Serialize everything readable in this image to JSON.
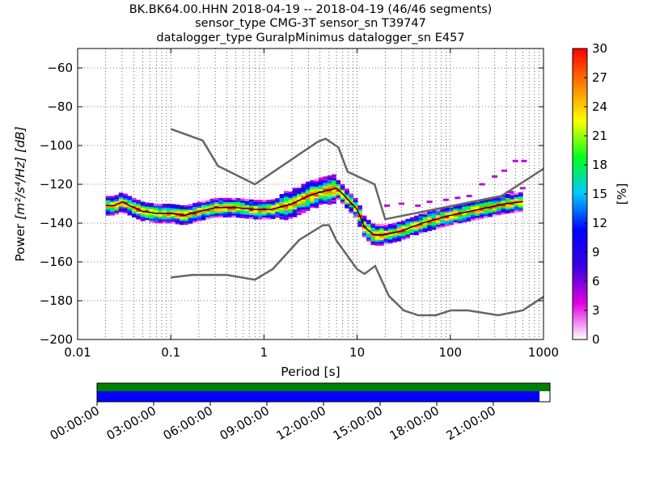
{
  "chart_data": {
    "type": "heatmap",
    "title_lines": [
      "BK.BK64.00.HHN   2018-04-19 -- 2018-04-19  (46/46 segments)",
      "sensor_type CMG-3T sensor_sn T39747",
      "datalogger_type GuralpMinimus datalogger_sn E457"
    ],
    "xlabel": "Period [s]",
    "ylabel": "Power",
    "ylabel_units": "[m²/s⁴/Hz] [dB]",
    "x_scale": "log",
    "xlim": [
      0.01,
      1000
    ],
    "ylim": [
      -200,
      -50
    ],
    "x_ticks": [
      0.01,
      0.1,
      1,
      10,
      100,
      1000
    ],
    "x_tick_labels": [
      "0.01",
      "0.1",
      "1",
      "10",
      "100",
      "1000"
    ],
    "y_ticks": [
      -200,
      -180,
      -160,
      -140,
      -120,
      -100,
      -80,
      -60
    ],
    "y_tick_labels": [
      "−200",
      "−180",
      "−160",
      "−140",
      "−120",
      "−100",
      "−80",
      "−60"
    ],
    "grid": "dotted",
    "colorbar": {
      "label": "[%]",
      "min": 0,
      "max": 30,
      "ticks": [
        0,
        3,
        6,
        9,
        12,
        15,
        18,
        21,
        24,
        27,
        30
      ],
      "tick_labels": [
        "0",
        "3",
        "6",
        "9",
        "12",
        "15",
        "18",
        "21",
        "24",
        "27",
        "30"
      ],
      "stops": [
        "#ffffff",
        "#e000e0",
        "#3a00e0",
        "#0000ff",
        "#00c8ff",
        "#00ff20",
        "#ffff00",
        "#ff8000",
        "#ff0000"
      ]
    },
    "high_noise_model": {
      "period": [
        0.1,
        0.22,
        0.32,
        0.8,
        3.8,
        4.6,
        6.3,
        7.9,
        15.4,
        20,
        354,
        1000
      ],
      "db": [
        -91.5,
        -97.4,
        -110.5,
        -120,
        -98,
        -96.5,
        -101,
        -113.5,
        -120,
        -138,
        -126,
        -112
      ]
    },
    "low_noise_model": {
      "period": [
        0.1,
        0.17,
        0.4,
        0.8,
        1.24,
        2.4,
        4.3,
        5,
        6,
        10,
        12,
        15.6,
        21.9,
        31.6,
        45,
        70,
        101,
        154,
        328,
        600,
        1000
      ],
      "db": [
        -168,
        -166.7,
        -166.7,
        -169.2,
        -163.7,
        -148.6,
        -141.1,
        -141.1,
        -149,
        -163.8,
        -166.2,
        -162.1,
        -177.5,
        -185,
        -187.5,
        -187.5,
        -185,
        -185,
        -187.5,
        -185,
        -178
      ]
    },
    "mode_curve": {
      "period": [
        0.02,
        0.025,
        0.03,
        0.04,
        0.05,
        0.07,
        0.1,
        0.14,
        0.2,
        0.3,
        0.5,
        0.8,
        1.2,
        2,
        3,
        4,
        5,
        6,
        7,
        8,
        10,
        12,
        15,
        20,
        30,
        50,
        100,
        200,
        400,
        600
      ],
      "db": [
        -131,
        -131,
        -129,
        -132,
        -134,
        -135,
        -135,
        -136,
        -134,
        -132,
        -132,
        -133,
        -133,
        -130,
        -126,
        -124,
        -123,
        -122,
        -125,
        -128,
        -133,
        -142,
        -146,
        -146,
        -144,
        -140,
        -136,
        -133,
        -130,
        -129
      ]
    },
    "time_axis": {
      "labels": [
        "00:00:00",
        "03:00:00",
        "06:00:00",
        "09:00:00",
        "12:00:00",
        "15:00:00",
        "18:00:00",
        "21:00:00"
      ],
      "coverage_top_color": "#008000",
      "coverage_bottom_color": "#0000ff",
      "coverage_fraction": 0.977
    }
  }
}
